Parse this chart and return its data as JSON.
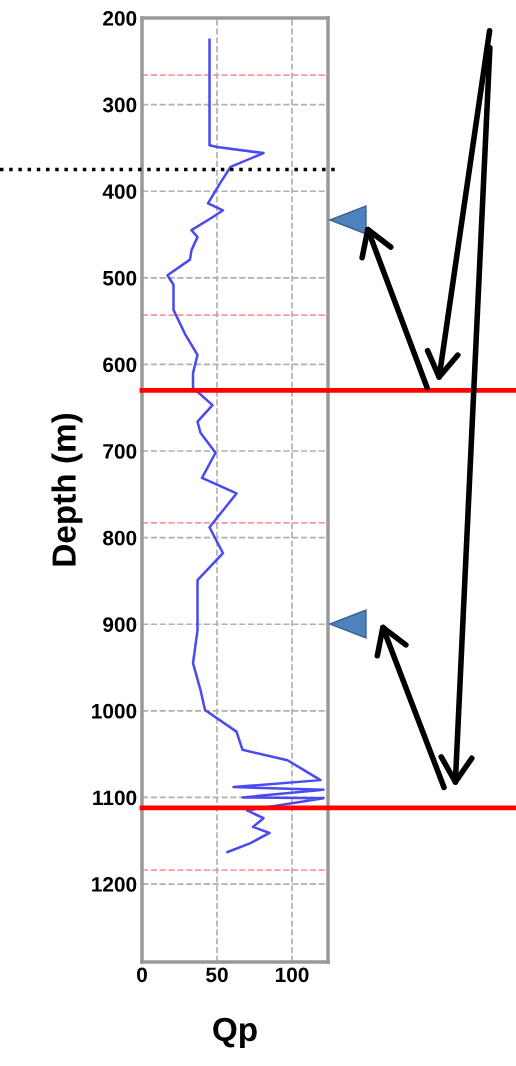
{
  "chart_data": {
    "type": "line",
    "xlabel": "Qp",
    "ylabel": "Depth (m)",
    "xlim": [
      0,
      124
    ],
    "xticks": [
      0,
      50,
      100
    ],
    "ylim": [
      1290,
      200
    ],
    "yticks": [
      200,
      300,
      400,
      500,
      600,
      700,
      800,
      900,
      1000,
      1100,
      1200
    ],
    "grid": true,
    "marker": "none",
    "line_style": "solid",
    "series": [
      {
        "color": "#4a4af0",
        "x": [
          45,
          45,
          50,
          81,
          59,
          52,
          44,
          54,
          47,
          33,
          37,
          33,
          32,
          17,
          21,
          21,
          29,
          37,
          34,
          34,
          47,
          37,
          39,
          49,
          40,
          63,
          45,
          54,
          37,
          37,
          34,
          39,
          42,
          63,
          67,
          97,
          119,
          61,
          121,
          67,
          121,
          70,
          81,
          74,
          85,
          72,
          57
        ],
        "values": [
          225,
          347,
          349,
          356,
          372,
          391,
          414,
          422,
          430,
          445,
          453,
          468,
          479,
          497,
          508,
          537,
          566,
          589,
          610,
          627,
          647,
          666,
          679,
          702,
          731,
          749,
          788,
          818,
          849,
          907,
          945,
          976,
          999,
          1024,
          1045,
          1057,
          1080,
          1088,
          1091,
          1100,
          1101,
          1115,
          1124,
          1134,
          1141,
          1153,
          1163
        ]
      }
    ],
    "ref_lines": [
      {
        "axis": "y",
        "value": 375,
        "color": "#000000",
        "line_style": "dotted"
      },
      {
        "axis": "y",
        "value": 630,
        "color": "#ff0000",
        "line_style": "solid"
      },
      {
        "axis": "y",
        "value": 1112,
        "color": "#ff0000",
        "line_style": "solid"
      },
      {
        "axis": "y",
        "value": 266,
        "color": "#ff9999",
        "line_style": "dashed"
      },
      {
        "axis": "y",
        "value": 543,
        "color": "#ff9999",
        "line_style": "dashed"
      },
      {
        "axis": "y",
        "value": 783,
        "color": "#ff9999",
        "line_style": "dashed"
      },
      {
        "axis": "y",
        "value": 1184,
        "color": "#ff9999",
        "line_style": "dashed"
      }
    ]
  }
}
